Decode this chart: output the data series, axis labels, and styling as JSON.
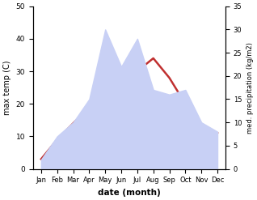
{
  "months": [
    "Jan",
    "Feb",
    "Mar",
    "Apr",
    "May",
    "Jun",
    "Jul",
    "Aug",
    "Sep",
    "Oct",
    "Nov",
    "Dec"
  ],
  "temperature": [
    3,
    9,
    14,
    19,
    24,
    26,
    30,
    34,
    28,
    20,
    13,
    11
  ],
  "precipitation": [
    2,
    7,
    10,
    15,
    30,
    22,
    28,
    17,
    16,
    17,
    10,
    8
  ],
  "temp_color": "#c03030",
  "precip_fill_color": "#c8d0f5",
  "precip_edge_color": "#aab4e8",
  "temp_ylim": [
    0,
    50
  ],
  "precip_ylim": [
    0,
    35
  ],
  "xlabel": "date (month)",
  "ylabel_left": "max temp (C)",
  "ylabel_right": "med. precipitation (kg/m2)",
  "temp_yticks": [
    0,
    10,
    20,
    30,
    40,
    50
  ],
  "precip_yticks": [
    0,
    5,
    10,
    15,
    20,
    25,
    30,
    35
  ]
}
